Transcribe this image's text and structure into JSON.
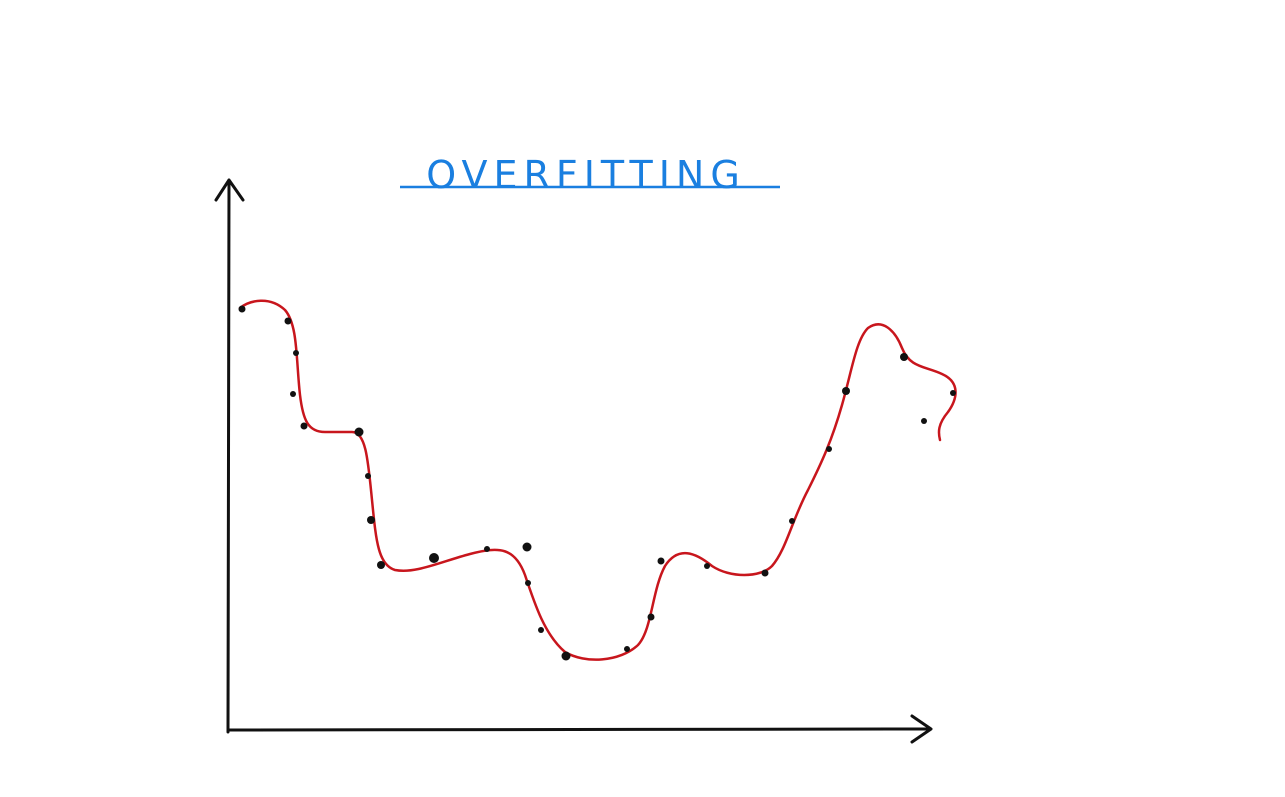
{
  "title": "OVERFITTING"
}
